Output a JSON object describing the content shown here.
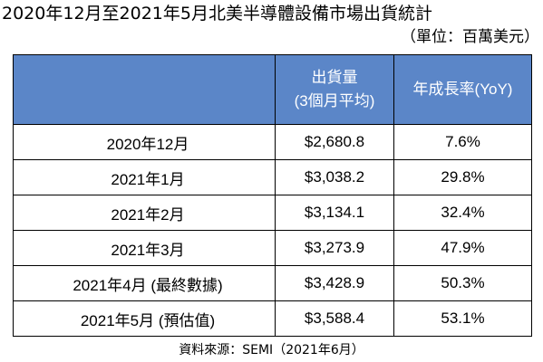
{
  "title": "2020年12月至2021年5月北美半導體設備市場出貨統計",
  "unit": "（單位：百萬美元）",
  "headers": {
    "period": "",
    "shipments_line1": "出貨量",
    "shipments_line2": "(3個月平均)",
    "yoy": "年成長率(YoY)"
  },
  "rows": [
    {
      "period": "2020年12月",
      "shipments": "$2,680.8",
      "yoy": "7.6%"
    },
    {
      "period": "2021年1月",
      "shipments": "$3,038.2",
      "yoy": "29.8%"
    },
    {
      "period": "2021年2月",
      "shipments": "$3,134.1",
      "yoy": "32.4%"
    },
    {
      "period": "2021年3月",
      "shipments": "$3,273.9",
      "yoy": "47.9%"
    },
    {
      "period": "2021年4月 (最終數據)",
      "shipments": "$3,428.9",
      "yoy": "50.3%"
    },
    {
      "period": "2021年5月 (預估值)",
      "shipments": "$3,588.4",
      "yoy": "53.1%"
    }
  ],
  "source": "資料來源：SEMI（2021年6月）"
}
